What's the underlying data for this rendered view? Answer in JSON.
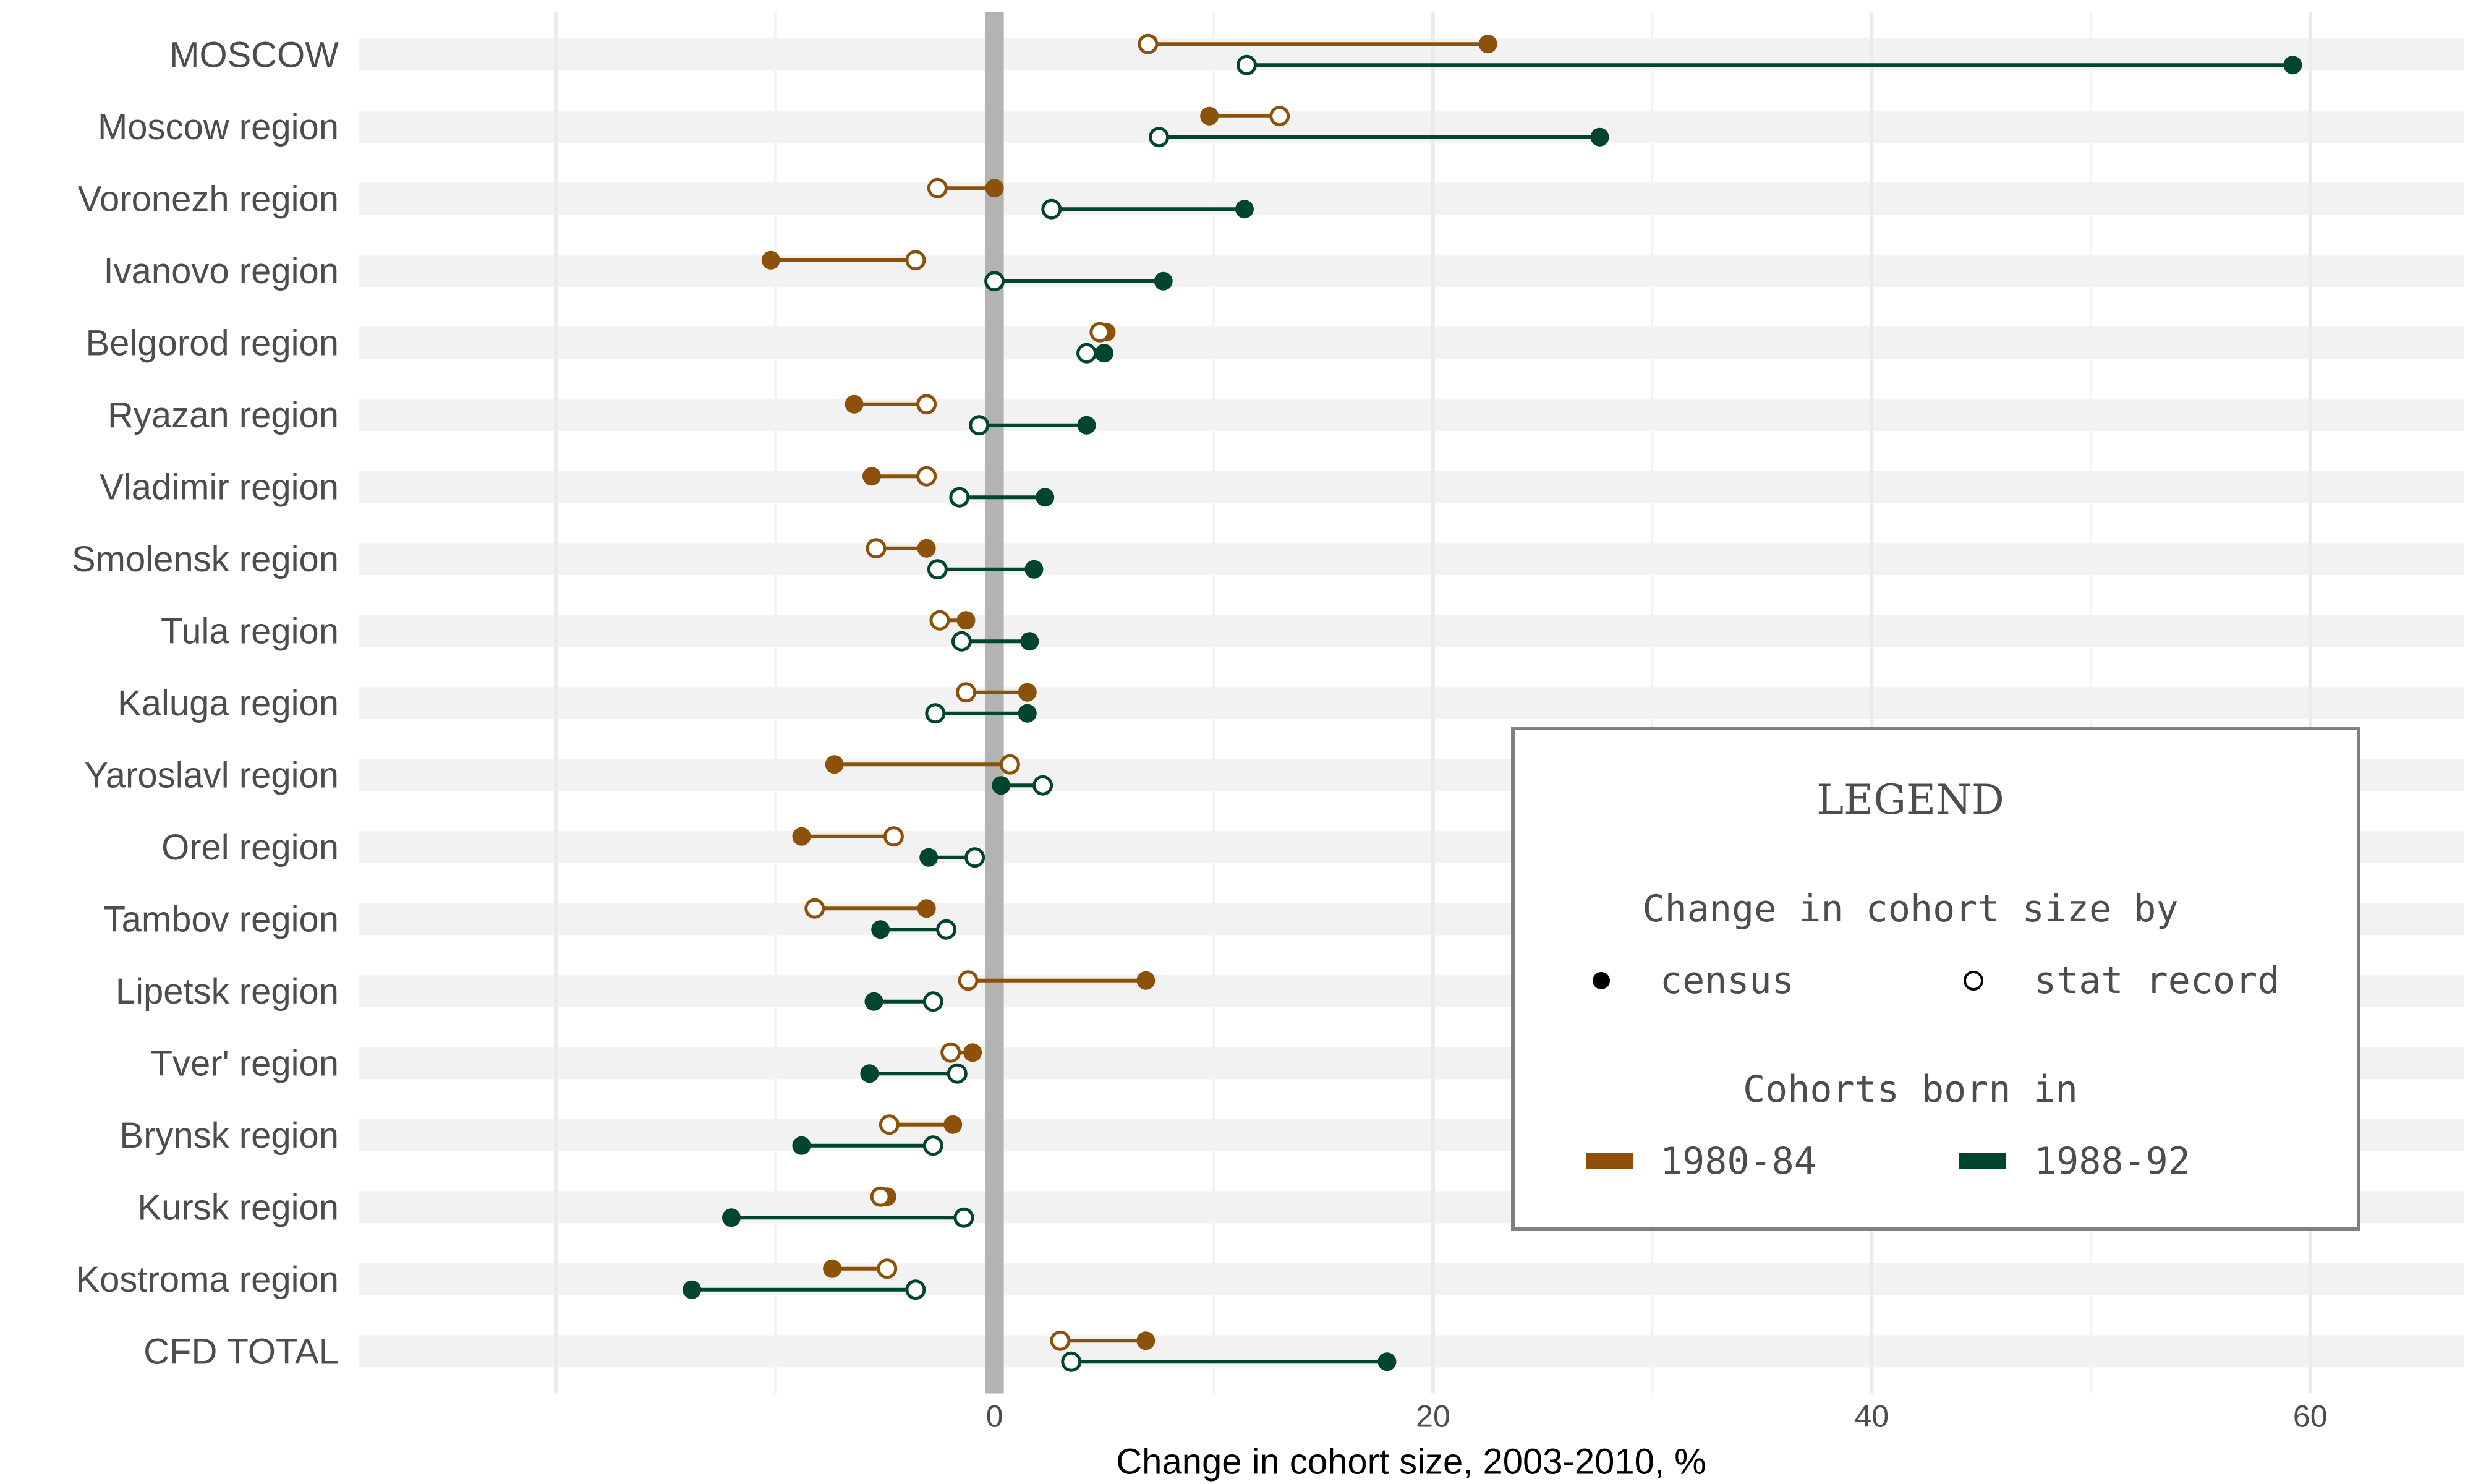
{
  "chart_data": {
    "type": "dumbbell",
    "xlabel": "Change in cohort size, 2003-2010, %",
    "xlim": [
      -29,
      67
    ],
    "xticks": [
      0,
      20,
      40,
      60
    ],
    "grid": true,
    "categories": [
      "MOSCOW",
      "Moscow region",
      "Voronezh region",
      "Ivanovo region",
      "Belgorod region",
      "Ryazan region",
      "Vladimir region",
      "Smolensk region",
      "Tula region",
      "Kaluga region",
      "Yaroslavl region",
      "Orel region",
      "Tambov region",
      "Lipetsk region",
      "Tver' region",
      "Brynsk region",
      "Kursk region",
      "Kostroma region",
      "CFD TOTAL"
    ],
    "series": [
      {
        "name": "1980-84",
        "color": "#8c510a",
        "census": [
          22.5,
          9.8,
          0.0,
          -10.2,
          5.1,
          -6.4,
          -5.6,
          -3.1,
          -1.3,
          1.5,
          -7.3,
          -8.8,
          -3.1,
          6.9,
          -1.0,
          -1.9,
          -4.9,
          -7.4,
          6.9
        ],
        "stat_record": [
          7.0,
          13.0,
          -2.6,
          -3.6,
          4.8,
          -3.1,
          -3.1,
          -5.4,
          -2.5,
          -1.3,
          0.7,
          -4.6,
          -8.2,
          -1.2,
          -2.0,
          -4.8,
          -5.2,
          -4.9,
          3.0
        ]
      },
      {
        "name": "1988-92",
        "color": "#01452c",
        "census": [
          59.2,
          27.6,
          11.4,
          7.7,
          5.0,
          4.2,
          2.3,
          1.8,
          1.6,
          1.5,
          0.3,
          -3.0,
          -5.2,
          -5.5,
          -5.7,
          -8.8,
          -12.0,
          -13.8,
          17.9
        ],
        "stat_record": [
          11.5,
          7.5,
          2.6,
          0.0,
          4.2,
          -0.7,
          -1.6,
          -2.6,
          -1.5,
          -2.7,
          2.2,
          -0.9,
          -2.2,
          -2.8,
          -1.7,
          -2.8,
          -1.4,
          -3.6,
          3.5
        ]
      }
    ],
    "legend": {
      "position": "bottom-right",
      "title": "LEGEND",
      "shape_title": "Change in cohort size by",
      "shape_items": [
        "census",
        "stat record"
      ],
      "color_title": "Cohorts born in",
      "color_items": [
        "1980-84",
        "1988-92"
      ]
    }
  }
}
